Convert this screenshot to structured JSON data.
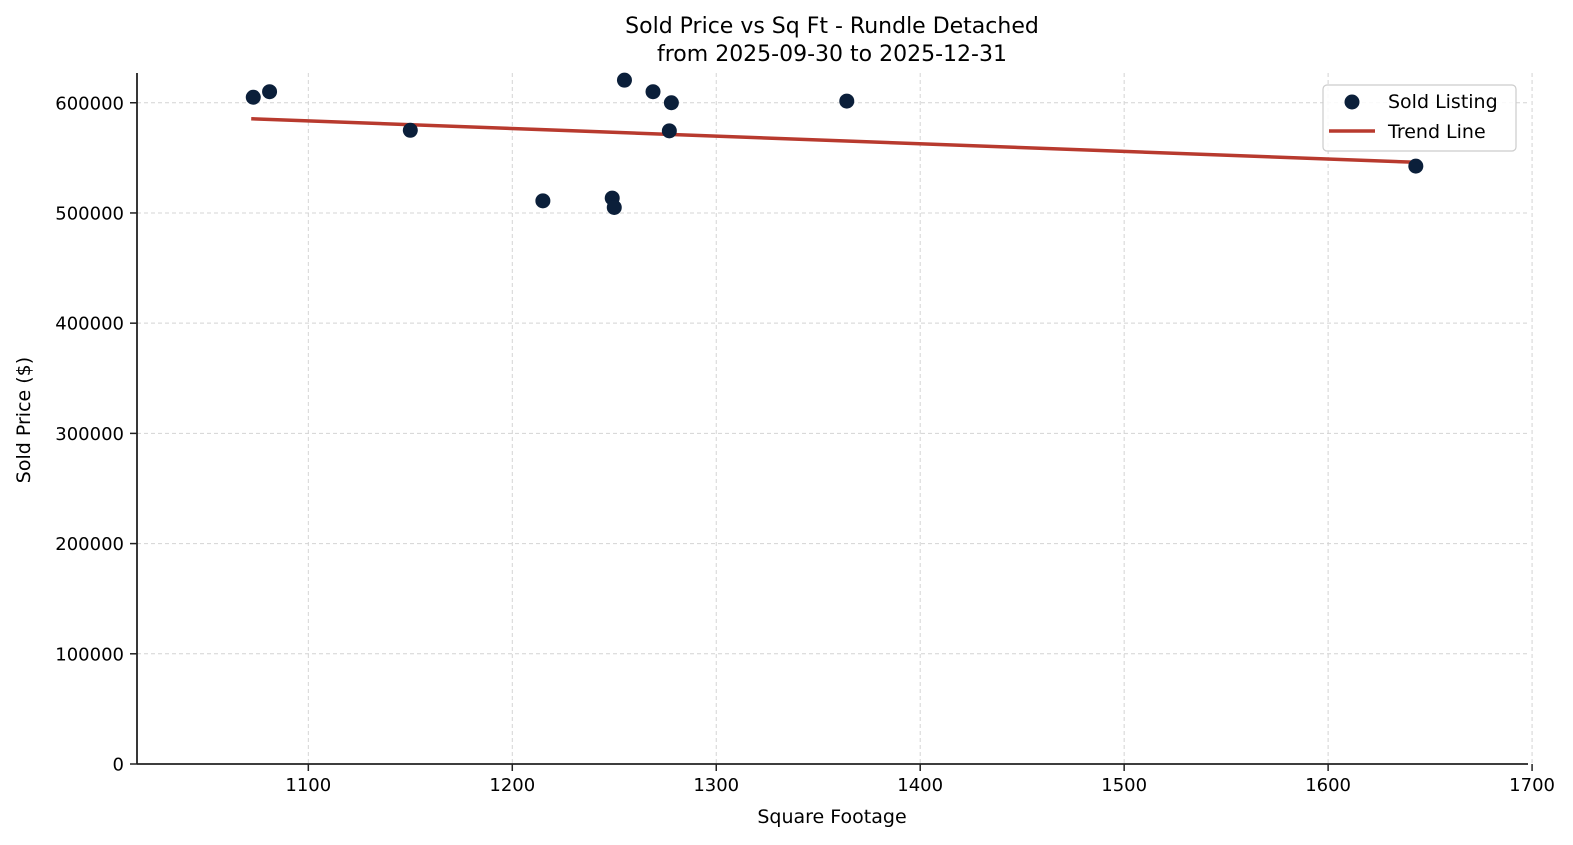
{
  "chart_data": {
    "type": "scatter",
    "title": "Sold Price vs Sq Ft - Rundle Detached",
    "subtitle": "from 2025-09-30 to 2025-12-31",
    "xlabel": "Square Footage",
    "ylabel": "Sold Price ($)",
    "xlim": [
      1016,
      1698
    ],
    "ylim": [
      0,
      627000
    ],
    "xticks": [
      1100,
      1200,
      1300,
      1400,
      1500,
      1600,
      1700
    ],
    "yticks": [
      0,
      100000,
      200000,
      300000,
      400000,
      500000,
      600000
    ],
    "grid": true,
    "legend_position": "upper right",
    "series": [
      {
        "name": "Sold Listing",
        "kind": "scatter",
        "color": "#0b1f3a",
        "points": [
          {
            "x": 1073,
            "y": 605000
          },
          {
            "x": 1081,
            "y": 610000
          },
          {
            "x": 1150,
            "y": 575000
          },
          {
            "x": 1215,
            "y": 511000
          },
          {
            "x": 1249,
            "y": 513500
          },
          {
            "x": 1250,
            "y": 505000
          },
          {
            "x": 1255,
            "y": 620500
          },
          {
            "x": 1269,
            "y": 610000
          },
          {
            "x": 1278,
            "y": 600000
          },
          {
            "x": 1277,
            "y": 574500
          },
          {
            "x": 1364,
            "y": 601500
          },
          {
            "x": 1643,
            "y": 542500
          }
        ]
      },
      {
        "name": "Trend Line",
        "kind": "line",
        "color": "#b83a2e",
        "points": [
          {
            "x": 1072,
            "y": 585500
          },
          {
            "x": 1643,
            "y": 546000
          }
        ]
      }
    ]
  }
}
